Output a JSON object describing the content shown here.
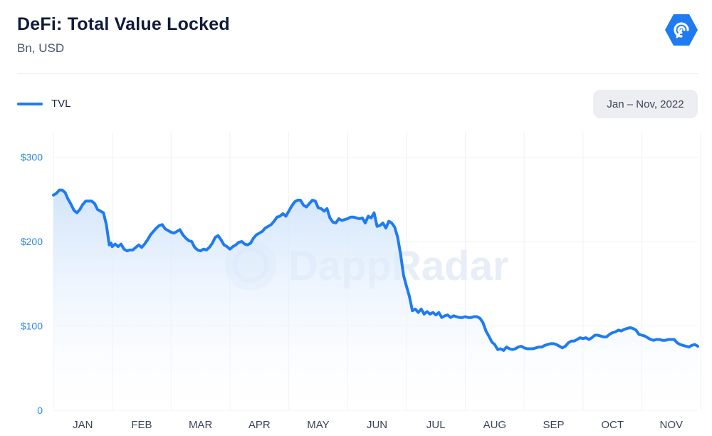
{
  "header": {
    "title": "DeFi: Total Value Locked",
    "subtitle": "Bn, USD",
    "logo_icon": "dappradar-logo-icon"
  },
  "range_badge": "Jan – Nov, 2022",
  "colors": {
    "line": "#1f7bf2",
    "area_top": "#cfe3fb",
    "axis_text_y": "#2a86e8",
    "grid": "#eef1f5",
    "watermark": "#dde6f5"
  },
  "watermark_text": "DappRadar",
  "chart_data": {
    "type": "area",
    "title": "DeFi: Total Value Locked",
    "subtitle": "Bn, USD",
    "legend": {
      "position": "top-left",
      "entries": [
        "TVL"
      ]
    },
    "xlabel": "",
    "ylabel": "",
    "ylim": [
      0,
      330
    ],
    "xlim": [
      0,
      10.95
    ],
    "y_ticks": [
      {
        "value": 0,
        "label": "0"
      },
      {
        "value": 100,
        "label": "$100"
      },
      {
        "value": 200,
        "label": "$200"
      },
      {
        "value": 300,
        "label": "$300"
      }
    ],
    "x_ticks": [
      "JAN",
      "FEB",
      "MAR",
      "APR",
      "MAY",
      "JUN",
      "JUL",
      "AUG",
      "SEP",
      "OCT",
      "NOV"
    ],
    "grid": true,
    "series": [
      {
        "name": "TVL",
        "x_unit": "months since Jan 1, 2022",
        "points": [
          [
            0.0,
            255
          ],
          [
            0.05,
            257
          ],
          [
            0.1,
            261
          ],
          [
            0.15,
            261
          ],
          [
            0.2,
            258
          ],
          [
            0.25,
            250
          ],
          [
            0.3,
            244
          ],
          [
            0.35,
            237
          ],
          [
            0.4,
            234
          ],
          [
            0.45,
            238
          ],
          [
            0.5,
            244
          ],
          [
            0.55,
            248
          ],
          [
            0.6,
            248
          ],
          [
            0.65,
            248
          ],
          [
            0.7,
            245
          ],
          [
            0.75,
            238
          ],
          [
            0.8,
            236
          ],
          [
            0.85,
            234
          ],
          [
            0.9,
            220
          ],
          [
            0.95,
            196
          ],
          [
            0.98,
            198
          ],
          [
            1.0,
            194
          ],
          [
            1.05,
            197
          ],
          [
            1.1,
            194
          ],
          [
            1.15,
            197
          ],
          [
            1.2,
            191
          ],
          [
            1.25,
            189
          ],
          [
            1.3,
            190
          ],
          [
            1.35,
            190
          ],
          [
            1.4,
            193
          ],
          [
            1.45,
            196
          ],
          [
            1.5,
            193
          ],
          [
            1.55,
            197
          ],
          [
            1.6,
            202
          ],
          [
            1.65,
            208
          ],
          [
            1.7,
            212
          ],
          [
            1.75,
            216
          ],
          [
            1.8,
            219
          ],
          [
            1.85,
            220
          ],
          [
            1.9,
            215
          ],
          [
            1.95,
            213
          ],
          [
            2.0,
            211
          ],
          [
            2.05,
            210
          ],
          [
            2.1,
            212
          ],
          [
            2.15,
            214
          ],
          [
            2.2,
            208
          ],
          [
            2.25,
            204
          ],
          [
            2.3,
            201
          ],
          [
            2.35,
            200
          ],
          [
            2.4,
            193
          ],
          [
            2.45,
            190
          ],
          [
            2.5,
            189
          ],
          [
            2.55,
            191
          ],
          [
            2.6,
            190
          ],
          [
            2.65,
            193
          ],
          [
            2.7,
            198
          ],
          [
            2.75,
            205
          ],
          [
            2.8,
            207
          ],
          [
            2.85,
            202
          ],
          [
            2.9,
            196
          ],
          [
            2.95,
            194
          ],
          [
            3.0,
            191
          ],
          [
            3.05,
            194
          ],
          [
            3.1,
            196
          ],
          [
            3.15,
            199
          ],
          [
            3.2,
            200
          ],
          [
            3.25,
            197
          ],
          [
            3.3,
            196
          ],
          [
            3.35,
            198
          ],
          [
            3.4,
            204
          ],
          [
            3.45,
            208
          ],
          [
            3.5,
            210
          ],
          [
            3.55,
            212
          ],
          [
            3.6,
            216
          ],
          [
            3.65,
            218
          ],
          [
            3.7,
            220
          ],
          [
            3.75,
            224
          ],
          [
            3.8,
            229
          ],
          [
            3.85,
            230
          ],
          [
            3.9,
            233
          ],
          [
            3.95,
            230
          ],
          [
            4.0,
            236
          ],
          [
            4.05,
            242
          ],
          [
            4.1,
            247
          ],
          [
            4.15,
            249
          ],
          [
            4.2,
            249
          ],
          [
            4.25,
            243
          ],
          [
            4.3,
            241
          ],
          [
            4.35,
            245
          ],
          [
            4.4,
            249
          ],
          [
            4.45,
            248
          ],
          [
            4.5,
            240
          ],
          [
            4.55,
            239
          ],
          [
            4.6,
            236
          ],
          [
            4.65,
            239
          ],
          [
            4.7,
            228
          ],
          [
            4.75,
            223
          ],
          [
            4.8,
            222
          ],
          [
            4.85,
            227
          ],
          [
            4.9,
            225
          ],
          [
            4.95,
            226
          ],
          [
            5.0,
            227
          ],
          [
            5.05,
            229
          ],
          [
            5.1,
            229
          ],
          [
            5.15,
            228
          ],
          [
            5.2,
            227
          ],
          [
            5.25,
            228
          ],
          [
            5.3,
            222
          ],
          [
            5.35,
            230
          ],
          [
            5.4,
            228
          ],
          [
            5.45,
            234
          ],
          [
            5.5,
            218
          ],
          [
            5.55,
            219
          ],
          [
            5.6,
            222
          ],
          [
            5.65,
            216
          ],
          [
            5.7,
            224
          ],
          [
            5.75,
            222
          ],
          [
            5.8,
            217
          ],
          [
            5.85,
            205
          ],
          [
            5.9,
            185
          ],
          [
            5.95,
            160
          ],
          [
            6.0,
            147
          ],
          [
            6.05,
            135
          ],
          [
            6.1,
            118
          ],
          [
            6.15,
            120
          ],
          [
            6.2,
            116
          ],
          [
            6.25,
            120
          ],
          [
            6.3,
            114
          ],
          [
            6.35,
            117
          ],
          [
            6.4,
            114
          ],
          [
            6.45,
            116
          ],
          [
            6.5,
            113
          ],
          [
            6.55,
            116
          ],
          [
            6.6,
            110
          ],
          [
            6.65,
            112
          ],
          [
            6.7,
            113
          ],
          [
            6.75,
            110
          ],
          [
            6.8,
            112
          ],
          [
            6.85,
            111
          ],
          [
            6.9,
            110
          ],
          [
            6.95,
            110
          ],
          [
            7.0,
            111
          ],
          [
            7.05,
            110
          ],
          [
            7.1,
            110
          ],
          [
            7.15,
            111
          ],
          [
            7.2,
            111
          ],
          [
            7.25,
            109
          ],
          [
            7.3,
            104
          ],
          [
            7.35,
            94
          ],
          [
            7.4,
            88
          ],
          [
            7.45,
            81
          ],
          [
            7.5,
            78
          ],
          [
            7.55,
            72
          ],
          [
            7.6,
            73
          ],
          [
            7.65,
            71
          ],
          [
            7.7,
            75
          ],
          [
            7.75,
            73
          ],
          [
            7.8,
            72
          ],
          [
            7.85,
            73
          ],
          [
            7.9,
            75
          ],
          [
            7.95,
            76
          ],
          [
            8.0,
            74
          ],
          [
            8.05,
            73
          ],
          [
            8.1,
            73
          ],
          [
            8.15,
            73
          ],
          [
            8.2,
            74
          ],
          [
            8.25,
            75
          ],
          [
            8.3,
            75
          ],
          [
            8.35,
            77
          ],
          [
            8.4,
            78
          ],
          [
            8.45,
            79
          ],
          [
            8.5,
            79
          ],
          [
            8.55,
            78
          ],
          [
            8.6,
            76
          ],
          [
            8.65,
            74
          ],
          [
            8.7,
            76
          ],
          [
            8.75,
            80
          ],
          [
            8.8,
            82
          ],
          [
            8.85,
            82
          ],
          [
            8.9,
            84
          ],
          [
            8.95,
            86
          ],
          [
            9.0,
            85
          ],
          [
            9.05,
            86
          ],
          [
            9.1,
            84
          ],
          [
            9.15,
            86
          ],
          [
            9.2,
            89
          ],
          [
            9.25,
            89
          ],
          [
            9.3,
            88
          ],
          [
            9.35,
            87
          ],
          [
            9.4,
            87
          ],
          [
            9.45,
            90
          ],
          [
            9.5,
            92
          ],
          [
            9.55,
            93
          ],
          [
            9.6,
            95
          ],
          [
            9.65,
            94
          ],
          [
            9.7,
            96
          ],
          [
            9.75,
            97
          ],
          [
            9.8,
            98
          ],
          [
            9.85,
            97
          ],
          [
            9.9,
            95
          ],
          [
            9.95,
            90
          ],
          [
            10.0,
            89
          ],
          [
            10.05,
            88
          ],
          [
            10.1,
            86
          ],
          [
            10.15,
            84
          ],
          [
            10.2,
            83
          ],
          [
            10.25,
            84
          ],
          [
            10.3,
            84
          ],
          [
            10.35,
            83
          ],
          [
            10.4,
            83
          ],
          [
            10.45,
            84
          ],
          [
            10.5,
            84
          ],
          [
            10.55,
            84
          ],
          [
            10.6,
            80
          ],
          [
            10.65,
            78
          ],
          [
            10.7,
            77
          ],
          [
            10.75,
            76
          ],
          [
            10.8,
            75
          ],
          [
            10.85,
            77
          ],
          [
            10.9,
            78
          ],
          [
            10.95,
            76
          ]
        ]
      }
    ]
  }
}
